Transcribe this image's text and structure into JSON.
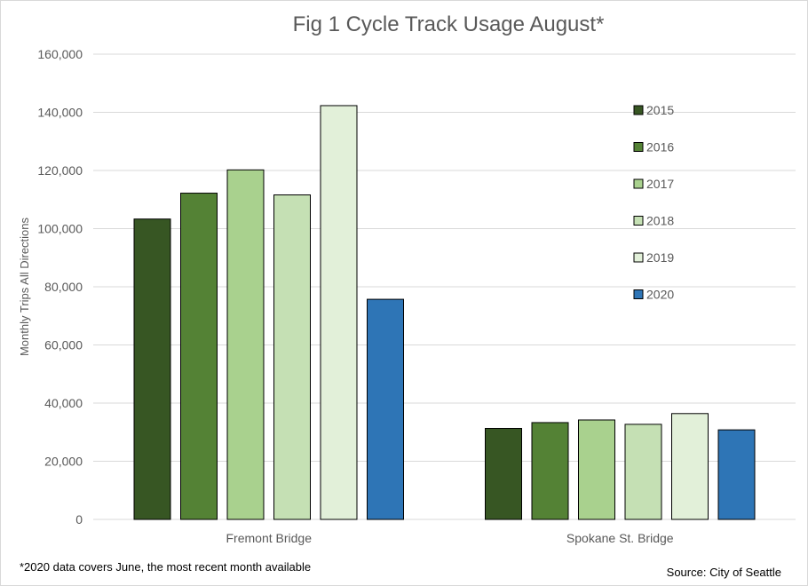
{
  "chart_data": {
    "type": "bar",
    "title": "Fig 1 Cycle Track Usage August*",
    "xlabel": "",
    "ylabel": "Monthly Trips All Directions",
    "categories": [
      "Fremont Bridge",
      "Spokane St. Bridge"
    ],
    "ylim": [
      0,
      160000
    ],
    "yticks": [
      0,
      20000,
      40000,
      60000,
      80000,
      100000,
      120000,
      140000,
      160000
    ],
    "ytick_labels": [
      "0",
      "20,000",
      "40,000",
      "60,000",
      "80,000",
      "100,000",
      "120,000",
      "140,000",
      "160,000"
    ],
    "grid": true,
    "legend_position": "right",
    "series": [
      {
        "name": "2015",
        "color": "#375623",
        "values": [
          103300,
          31300
        ]
      },
      {
        "name": "2016",
        "color": "#548235",
        "values": [
          112200,
          33300
        ]
      },
      {
        "name": "2017",
        "color": "#a9d18e",
        "values": [
          120200,
          34200
        ]
      },
      {
        "name": "2018",
        "color": "#c5e0b4",
        "values": [
          111600,
          32700
        ]
      },
      {
        "name": "2019",
        "color": "#e2f0d9",
        "values": [
          142300,
          36400
        ]
      },
      {
        "name": "2020",
        "color": "#2e75b6",
        "values": [
          75700,
          30800
        ]
      }
    ],
    "footnote": "*2020  data covers June, the most recent month available",
    "source": "Source: City of Seattle"
  }
}
